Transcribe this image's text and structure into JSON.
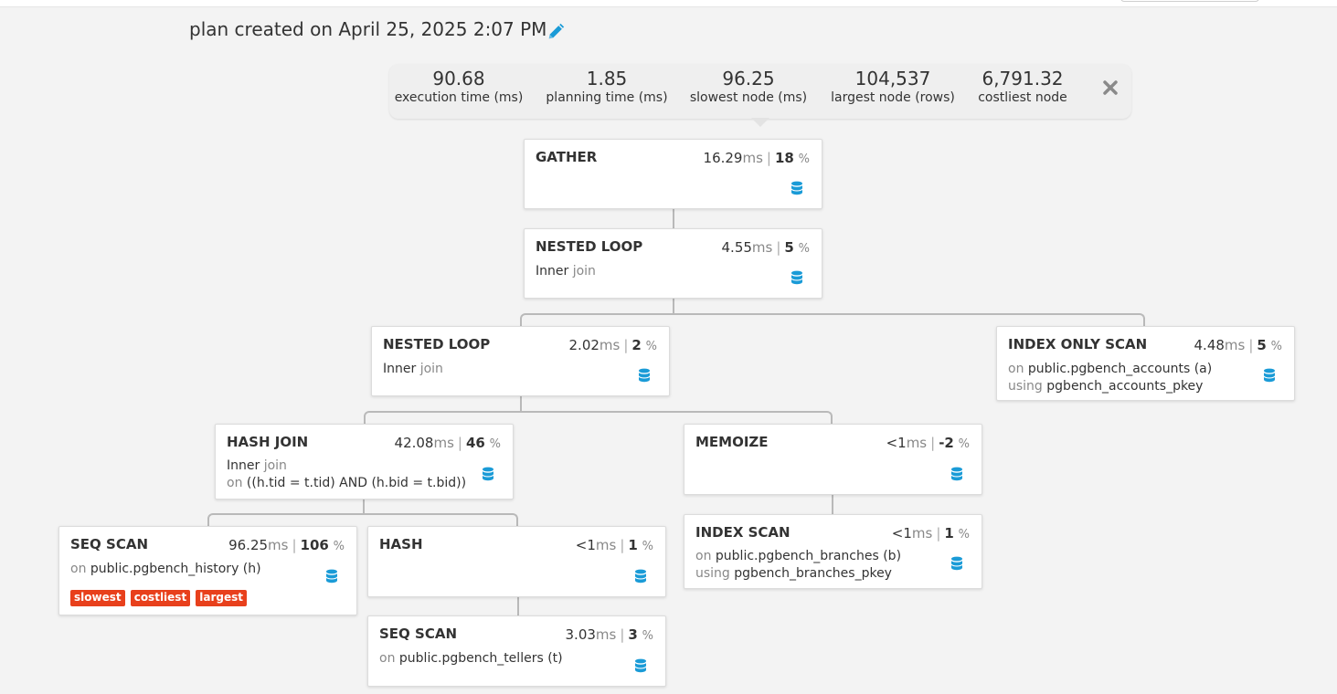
{
  "plan_title": "plan created on April 25, 2025 2:07 PM",
  "summary": [
    {
      "value": "90.68",
      "label": "execution time (ms)"
    },
    {
      "value": "1.85",
      "label": "planning time (ms)"
    },
    {
      "value": "96.25",
      "label": "slowest node (ms)"
    },
    {
      "value": "104,537",
      "label": "largest node (rows)"
    },
    {
      "value": "6,791.32",
      "label": "costliest node"
    }
  ],
  "labels": {
    "ms": "ms",
    "pct": "%",
    "sep": "|"
  },
  "colors": {
    "accent": "#1a9bd7",
    "tag": "#e8401c",
    "connector": "#b9b9b9"
  },
  "icons": {
    "edit": "pencil-icon",
    "close": "close-icon",
    "node": "database-icon"
  },
  "nodes": {
    "gather": {
      "name": "GATHER",
      "time": "16.29",
      "pct": "18"
    },
    "nested_loop_1": {
      "name": "NESTED LOOP",
      "time": "4.55",
      "pct": "5",
      "join_type": "Inner",
      "join_kw": "join"
    },
    "nested_loop_2": {
      "name": "NESTED LOOP",
      "time": "2.02",
      "pct": "2",
      "join_type": "Inner",
      "join_kw": "join"
    },
    "index_only_scan": {
      "name": "INDEX ONLY SCAN",
      "time": "4.48",
      "pct": "5",
      "on_kw": "on",
      "relation": "public.pgbench_accounts (a)",
      "using_kw": "using",
      "index": "pgbench_accounts_pkey"
    },
    "hash_join": {
      "name": "HASH JOIN",
      "time": "42.08",
      "pct": "46",
      "join_type": "Inner",
      "join_kw": "join",
      "on_kw": "on",
      "condition": "((h.tid = t.tid) AND (h.bid = t.bid))"
    },
    "memoize": {
      "name": "MEMOIZE",
      "time": "<1",
      "pct": "-2"
    },
    "seq_scan_history": {
      "name": "SEQ SCAN",
      "time": "96.25",
      "pct": "106",
      "on_kw": "on",
      "relation": "public.pgbench_history (h)",
      "tags": [
        "slowest",
        "costliest",
        "largest"
      ]
    },
    "hash": {
      "name": "HASH",
      "time": "<1",
      "pct": "1"
    },
    "index_scan": {
      "name": "INDEX SCAN",
      "time": "<1",
      "pct": "1",
      "on_kw": "on",
      "relation": "public.pgbench_branches (b)",
      "using_kw": "using",
      "index": "pgbench_branches_pkey"
    },
    "seq_scan_tellers": {
      "name": "SEQ SCAN",
      "time": "3.03",
      "pct": "3",
      "on_kw": "on",
      "relation": "public.pgbench_tellers (t)"
    }
  }
}
